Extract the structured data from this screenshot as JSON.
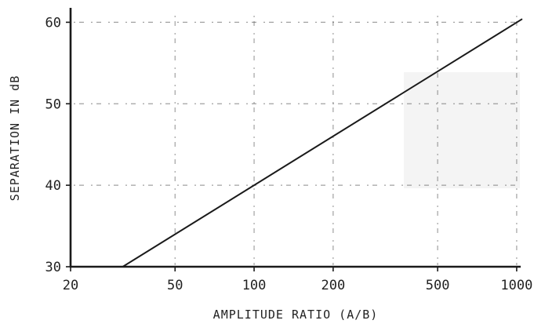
{
  "chart_data": {
    "type": "line",
    "xscale": "log",
    "xlabel": "AMPLITUDE RATIO (A/B)",
    "ylabel": "SEPARATION IN dB",
    "xlim": [
      20,
      1050
    ],
    "ylim": [
      30,
      61
    ],
    "x_ticks": [
      20,
      50,
      100,
      200,
      500,
      1000
    ],
    "x_tick_labels": [
      "20",
      "50",
      "100",
      "200",
      "500",
      "1000"
    ],
    "y_ticks": [
      30,
      40,
      50,
      60
    ],
    "y_tick_labels": [
      "30",
      "40",
      "50",
      "60"
    ],
    "grid": true,
    "series": [
      {
        "x": [
          20,
          31.6,
          1050
        ],
        "y": [
          30,
          30,
          60.4
        ]
      }
    ]
  }
}
